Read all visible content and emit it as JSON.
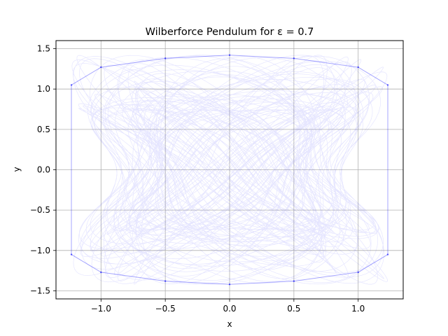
{
  "chart_data": {
    "type": "line",
    "title": "Wilberforce Pendulum for ε = 0.7",
    "xlabel": "x",
    "ylabel": "y",
    "xlim": [
      -1.35,
      1.35
    ],
    "ylim": [
      -1.6,
      1.6
    ],
    "x_ticks": [
      -1.0,
      -0.5,
      0.0,
      0.5,
      1.0
    ],
    "x_tick_labels": [
      "−1.0",
      "−0.5",
      "0.0",
      "0.5",
      "1.0"
    ],
    "y_ticks": [
      -1.5,
      -1.0,
      -0.5,
      0.0,
      0.5,
      1.0,
      1.5
    ],
    "y_tick_labels": [
      "−1.5",
      "−1.0",
      "−0.5",
      "0.0",
      "0.5",
      "1.0",
      "1.5"
    ],
    "grid": true,
    "series": [
      {
        "color": "#0000ff",
        "line_alpha": 0.1,
        "points": [
          [
            -1.23,
            1.05
          ],
          [
            -1.0,
            1.27
          ],
          [
            -0.5,
            1.38
          ],
          [
            0.0,
            1.42
          ],
          [
            0.5,
            1.38
          ],
          [
            1.0,
            1.27
          ],
          [
            1.23,
            1.05
          ],
          [
            1.23,
            -1.05
          ],
          [
            1.0,
            -1.27
          ],
          [
            0.5,
            -1.38
          ],
          [
            0.0,
            -1.42
          ],
          [
            -0.5,
            -1.38
          ],
          [
            -1.0,
            -1.27
          ],
          [
            -1.23,
            -1.05
          ]
        ]
      }
    ]
  }
}
